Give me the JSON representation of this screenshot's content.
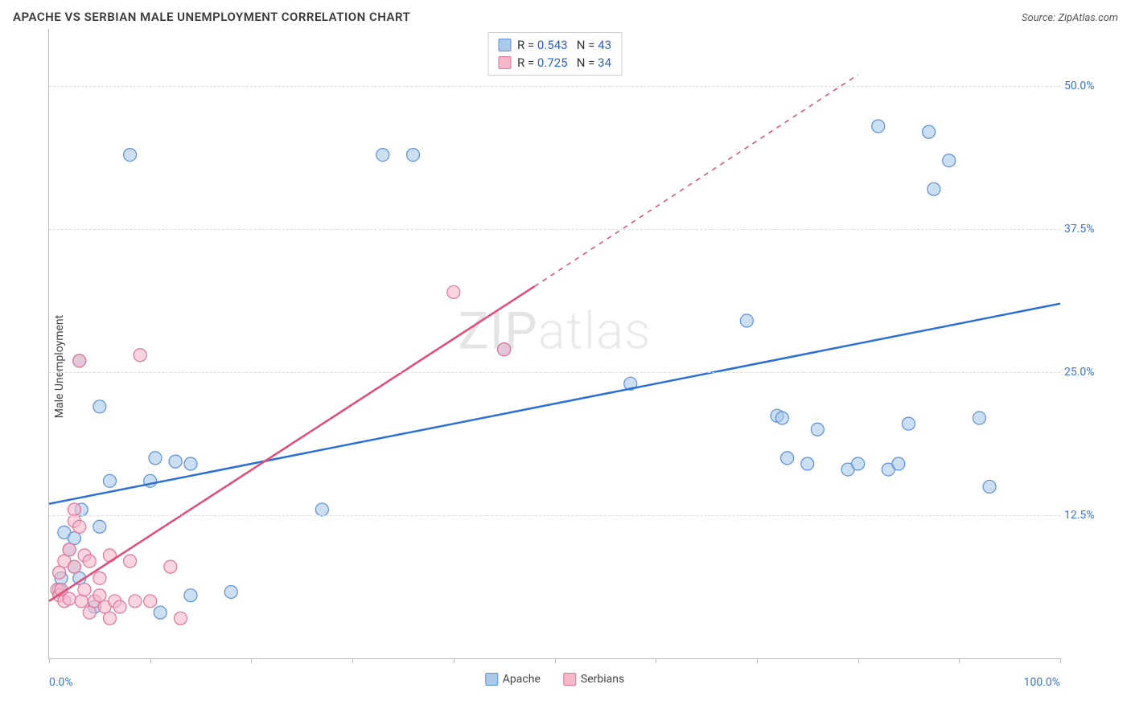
{
  "header": {
    "title": "APACHE VS SERBIAN MALE UNEMPLOYMENT CORRELATION CHART",
    "source": "Source: ZipAtlas.com"
  },
  "chart": {
    "type": "scatter",
    "ylabel": "Male Unemployment",
    "xlim": [
      0,
      100
    ],
    "ylim": [
      0,
      55
    ],
    "x_tick_positions": [
      0,
      10,
      20,
      30,
      40,
      50,
      60,
      70,
      80,
      90,
      100
    ],
    "x_axis_labels": {
      "left": "0.0%",
      "right": "100.0%"
    },
    "y_ticks": [
      {
        "value": 12.5,
        "label": "12.5%"
      },
      {
        "value": 25.0,
        "label": "25.0%"
      },
      {
        "value": 37.5,
        "label": "37.5%"
      },
      {
        "value": 50.0,
        "label": "50.0%"
      }
    ],
    "grid_dash_color": "#dddddd",
    "axis_color": "#bbbbbb",
    "background_color": "#ffffff",
    "watermark_text": "ZIPatlas",
    "series": [
      {
        "name": "Apache",
        "color_fill": "#a9c8ea",
        "color_stroke": "#5b8fd6",
        "trend_color": "#2b6fd6",
        "marker_radius": 8,
        "R": "0.543",
        "N": "43",
        "trend": {
          "x1": 0,
          "y1": 13.5,
          "x2": 100,
          "y2": 31.0,
          "dashed": false
        },
        "points": [
          [
            1.0,
            6.0
          ],
          [
            1.2,
            7.0
          ],
          [
            1.5,
            11.0
          ],
          [
            2.0,
            9.5
          ],
          [
            2.5,
            10.5
          ],
          [
            2.5,
            8.0
          ],
          [
            3.0,
            26.0
          ],
          [
            3.2,
            13.0
          ],
          [
            3.0,
            7.0
          ],
          [
            4.5,
            4.5
          ],
          [
            5.0,
            11.5
          ],
          [
            5.0,
            22.0
          ],
          [
            6.0,
            15.5
          ],
          [
            8.0,
            44.0
          ],
          [
            10.0,
            15.5
          ],
          [
            10.5,
            17.5
          ],
          [
            11.0,
            4.0
          ],
          [
            12.5,
            17.2
          ],
          [
            14.0,
            17.0
          ],
          [
            14.0,
            5.5
          ],
          [
            18.0,
            5.8
          ],
          [
            27.0,
            13.0
          ],
          [
            33.0,
            44.0
          ],
          [
            36.0,
            44.0
          ],
          [
            45.0,
            27.0
          ],
          [
            57.5,
            24.0
          ],
          [
            69.0,
            29.5
          ],
          [
            72.0,
            21.2
          ],
          [
            72.5,
            21.0
          ],
          [
            73.0,
            17.5
          ],
          [
            75.0,
            17.0
          ],
          [
            76.0,
            20.0
          ],
          [
            79.0,
            16.5
          ],
          [
            80.0,
            17.0
          ],
          [
            83.0,
            16.5
          ],
          [
            82.0,
            46.5
          ],
          [
            84.0,
            17.0
          ],
          [
            85.0,
            20.5
          ],
          [
            87.0,
            46.0
          ],
          [
            87.5,
            41.0
          ],
          [
            89.0,
            43.5
          ],
          [
            92.0,
            21.0
          ],
          [
            93.0,
            15.0
          ]
        ]
      },
      {
        "name": "Serbians",
        "color_fill": "#f4b9c9",
        "color_stroke": "#e27396",
        "trend_color": "#e24a78",
        "marker_radius": 8,
        "R": "0.725",
        "N": "34",
        "trend_solid": {
          "x1": 0,
          "y1": 5.0,
          "x2": 48,
          "y2": 32.5
        },
        "trend_dashed": {
          "x1": 48,
          "y1": 32.5,
          "x2": 80,
          "y2": 51.0
        },
        "points": [
          [
            0.8,
            6.0
          ],
          [
            1.0,
            5.5
          ],
          [
            1.0,
            7.5
          ],
          [
            1.2,
            6.0
          ],
          [
            1.5,
            8.5
          ],
          [
            1.5,
            5.0
          ],
          [
            2.0,
            5.2
          ],
          [
            2.0,
            9.5
          ],
          [
            2.5,
            13.0
          ],
          [
            2.5,
            12.0
          ],
          [
            2.5,
            8.0
          ],
          [
            3.0,
            11.5
          ],
          [
            3.0,
            26.0
          ],
          [
            3.2,
            5.0
          ],
          [
            3.5,
            9.0
          ],
          [
            3.5,
            6.0
          ],
          [
            4.0,
            8.5
          ],
          [
            4.0,
            4.0
          ],
          [
            4.5,
            5.0
          ],
          [
            5.0,
            5.5
          ],
          [
            5.0,
            7.0
          ],
          [
            5.5,
            4.5
          ],
          [
            6.0,
            9.0
          ],
          [
            6.0,
            3.5
          ],
          [
            6.5,
            5.0
          ],
          [
            7.0,
            4.5
          ],
          [
            8.0,
            8.5
          ],
          [
            8.5,
            5.0
          ],
          [
            9.0,
            26.5
          ],
          [
            10.0,
            5.0
          ],
          [
            12.0,
            8.0
          ],
          [
            13.0,
            3.5
          ],
          [
            40.0,
            32.0
          ],
          [
            45.0,
            27.0
          ]
        ]
      }
    ],
    "legend_bottom": [
      {
        "label": "Apache",
        "fill": "#a9c8ea",
        "stroke": "#5b8fd6"
      },
      {
        "label": "Serbians",
        "fill": "#f4b9c9",
        "stroke": "#e27396"
      }
    ]
  }
}
